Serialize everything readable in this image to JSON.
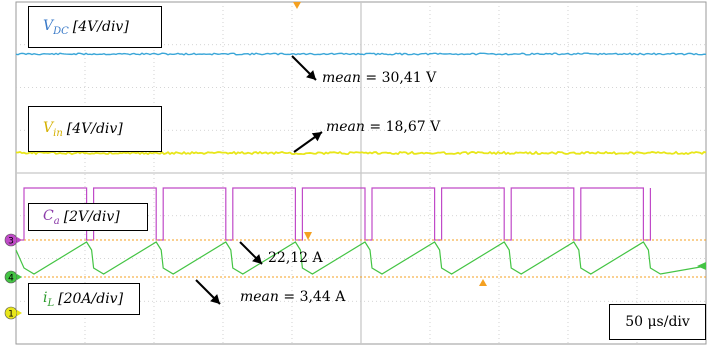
{
  "chart_data": {
    "type": "line",
    "instrument": "oscilloscope",
    "time_scale": "50 μs/div",
    "grid": "on",
    "channels": [
      {
        "id": "vdc",
        "label_main": "V",
        "label_sub": "DC",
        "scale": "[4V/div]",
        "color": "#3aa6d8",
        "annotation_key": "mean",
        "annotation_value": "= 30,41 V",
        "waveform": "dc"
      },
      {
        "id": "vin",
        "label_main": "V",
        "label_sub": "in",
        "scale": "[4V/div]",
        "color": "#e8e61a",
        "annotation_key": "mean",
        "annotation_value": "=  18,67 V",
        "waveform": "dc"
      },
      {
        "id": "ca",
        "label_main": "C",
        "label_sub": "a",
        "scale": "[2V/div]",
        "color": "#c04ac8",
        "marker": "3",
        "waveform": "square"
      },
      {
        "id": "il",
        "label_main": "i",
        "label_sub": "L",
        "scale": "[20A/div]",
        "color": "#44c444",
        "marker": "4",
        "peak_value": "22,12 A",
        "annotation_key": "mean",
        "annotation_value": "= 3,44 A",
        "waveform": "triangle"
      }
    ],
    "extra_markers": [
      {
        "id": "ch1",
        "marker": "1",
        "color": "#e8e61a"
      }
    ],
    "colors": {
      "grid": "#c8c8c8",
      "cursor": "#f4a020",
      "border": "#9a9a9a"
    }
  }
}
